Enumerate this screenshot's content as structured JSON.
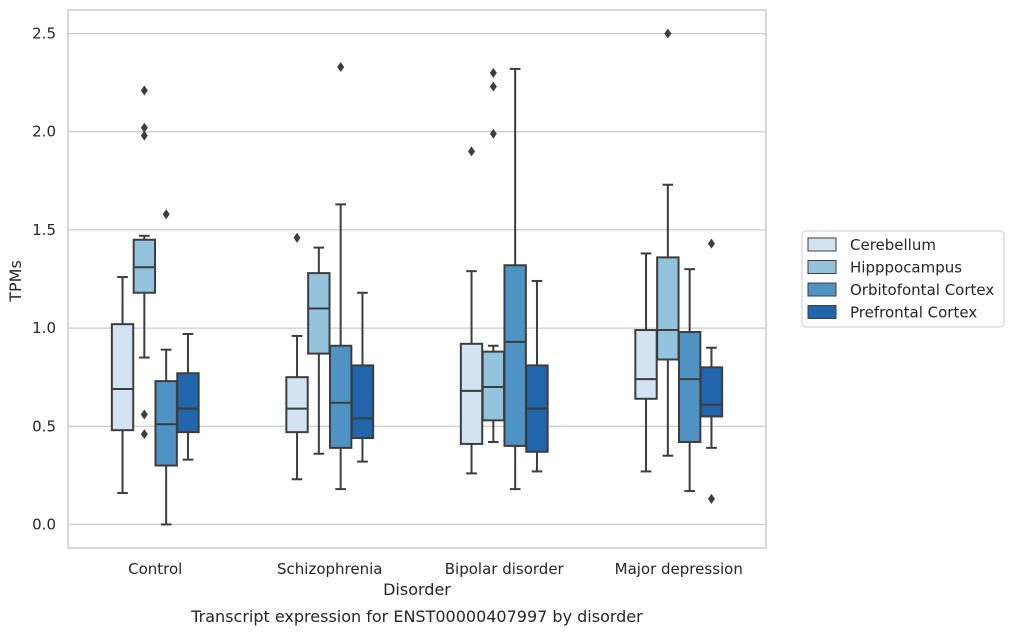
{
  "caption": "Transcript expression for ENST00000407997 by disorder",
  "colors": {
    "series": [
      "#d3e3f1",
      "#94c3de",
      "#4e93c3",
      "#2166ac"
    ],
    "box_edge": "#3d3d3d",
    "grid": "#cccccc",
    "frame": "#cccccc"
  },
  "chart_data": {
    "type": "box",
    "xlabel": "Disorder",
    "ylabel": "TPMs",
    "ylim": [
      -0.12,
      2.62
    ],
    "yticks": [
      "0.0",
      "0.5",
      "1.0",
      "1.5",
      "2.0",
      "2.5"
    ],
    "categories": [
      "Control",
      "Schizophrenia",
      "Bipolar disorder",
      "Major depression"
    ],
    "grid": "horizontal",
    "legend_position": "right",
    "series": [
      {
        "name": "Cerebellum",
        "boxes": [
          {
            "whislo": 0.16,
            "q1": 0.48,
            "med": 0.69,
            "q3": 1.02,
            "whishi": 1.26,
            "fliers": []
          },
          {
            "whislo": 0.23,
            "q1": 0.47,
            "med": 0.59,
            "q3": 0.75,
            "whishi": 0.96,
            "fliers": [
              1.46
            ]
          },
          {
            "whislo": 0.26,
            "q1": 0.41,
            "med": 0.68,
            "q3": 0.92,
            "whishi": 1.29,
            "fliers": [
              1.9
            ]
          },
          {
            "whislo": 0.27,
            "q1": 0.64,
            "med": 0.74,
            "q3": 0.99,
            "whishi": 1.38,
            "fliers": []
          }
        ]
      },
      {
        "name": "Hipppocampus",
        "boxes": [
          {
            "whislo": 0.85,
            "q1": 1.18,
            "med": 1.31,
            "q3": 1.45,
            "whishi": 1.47,
            "fliers": [
              0.56,
              0.46,
              1.98,
              2.02,
              2.21
            ]
          },
          {
            "whislo": 0.36,
            "q1": 0.87,
            "med": 1.1,
            "q3": 1.28,
            "whishi": 1.41,
            "fliers": []
          },
          {
            "whislo": 0.42,
            "q1": 0.53,
            "med": 0.7,
            "q3": 0.88,
            "whishi": 0.91,
            "fliers": [
              1.99,
              2.23,
              2.3
            ]
          },
          {
            "whislo": 0.35,
            "q1": 0.84,
            "med": 0.99,
            "q3": 1.36,
            "whishi": 1.73,
            "fliers": [
              2.5
            ]
          }
        ]
      },
      {
        "name": "Orbitofontal Cortex",
        "boxes": [
          {
            "whislo": 0.0,
            "q1": 0.3,
            "med": 0.51,
            "q3": 0.73,
            "whishi": 0.89,
            "fliers": [
              1.58
            ]
          },
          {
            "whislo": 0.18,
            "q1": 0.39,
            "med": 0.62,
            "q3": 0.91,
            "whishi": 1.63,
            "fliers": [
              2.33
            ]
          },
          {
            "whislo": 0.18,
            "q1": 0.4,
            "med": 0.93,
            "q3": 1.32,
            "whishi": 2.32,
            "fliers": []
          },
          {
            "whislo": 0.17,
            "q1": 0.42,
            "med": 0.74,
            "q3": 0.98,
            "whishi": 1.3,
            "fliers": []
          }
        ]
      },
      {
        "name": "Prefrontal Cortex",
        "boxes": [
          {
            "whislo": 0.33,
            "q1": 0.47,
            "med": 0.59,
            "q3": 0.77,
            "whishi": 0.97,
            "fliers": []
          },
          {
            "whislo": 0.32,
            "q1": 0.44,
            "med": 0.54,
            "q3": 0.81,
            "whishi": 1.18,
            "fliers": []
          },
          {
            "whislo": 0.27,
            "q1": 0.37,
            "med": 0.59,
            "q3": 0.81,
            "whishi": 1.24,
            "fliers": []
          },
          {
            "whislo": 0.39,
            "q1": 0.55,
            "med": 0.61,
            "q3": 0.8,
            "whishi": 0.9,
            "fliers": [
              1.43,
              0.13
            ]
          }
        ]
      }
    ]
  }
}
